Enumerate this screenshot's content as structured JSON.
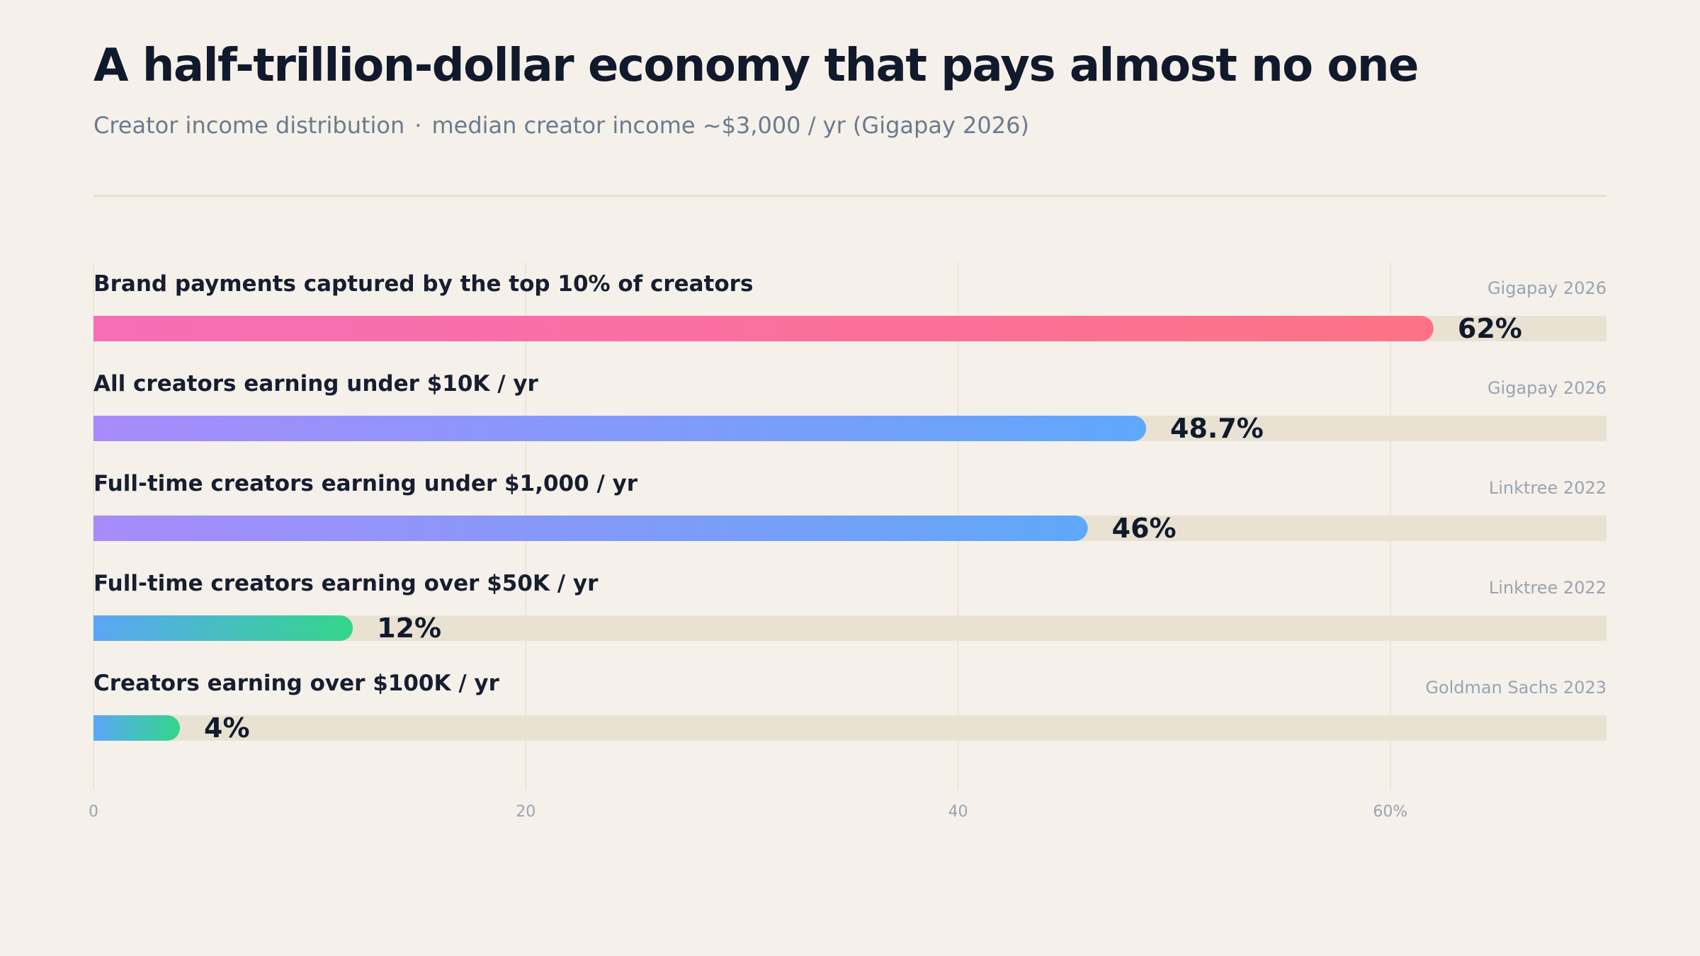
{
  "header": {
    "title": "A half-trillion-dollar economy that pays almost no one",
    "subtitle_left": "Creator income distribution",
    "subtitle_separator": "·",
    "subtitle_right": "median creator income ~$3,000 / yr (Gigapay 2026)"
  },
  "chart_data": {
    "type": "bar",
    "orientation": "horizontal",
    "xlim": [
      0,
      70
    ],
    "ticks": [
      {
        "value": 0,
        "label": "0"
      },
      {
        "value": 20,
        "label": "20"
      },
      {
        "value": 40,
        "label": "40"
      },
      {
        "value": 60,
        "label": "60%"
      }
    ],
    "grid": true,
    "track_color": "#e9e2d3",
    "bars": [
      {
        "label": "Brand payments captured by the top 10% of creators",
        "value": 62,
        "value_label": "62%",
        "source": "Gigapay 2026",
        "gradient": [
          "#f76db7",
          "#fd7285"
        ]
      },
      {
        "label": "All creators earning under $10K / yr",
        "value": 48.7,
        "value_label": "48.7%",
        "source": "Gigapay 2026",
        "gradient": [
          "#a88bfa",
          "#5fa8f9"
        ]
      },
      {
        "label": "Full-time creators earning under $1,000 / yr",
        "value": 46,
        "value_label": "46%",
        "source": "Linktree 2022",
        "gradient": [
          "#a88bfa",
          "#5fa8f9"
        ]
      },
      {
        "label": "Full-time creators earning over $50K / yr",
        "value": 12,
        "value_label": "12%",
        "source": "Linktree 2022",
        "gradient": [
          "#5ba6f5",
          "#33d68b"
        ]
      },
      {
        "label": "Creators earning over $100K / yr",
        "value": 4,
        "value_label": "4%",
        "source": "Goldman Sachs 2023",
        "gradient": [
          "#5ba6f5",
          "#33d68b"
        ]
      }
    ]
  }
}
